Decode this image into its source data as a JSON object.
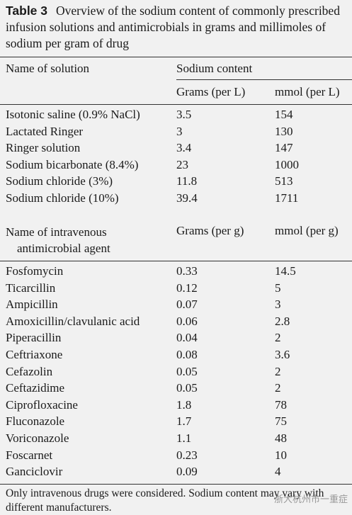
{
  "table": {
    "label": "Table 3",
    "caption": "Overview of the sodium content of commonly prescribed infusion solutions and antimicrobials in grams and millimoles of sodium per gram of drug",
    "section1": {
      "headers": [
        "Name of solution",
        "Sodium content",
        "Grams (per L)",
        "mmol (per L)"
      ],
      "rows": [
        [
          "Isotonic saline (0.9% NaCl)",
          "3.5",
          "154"
        ],
        [
          "Lactated Ringer",
          "3",
          "130"
        ],
        [
          "Ringer solution",
          "3.4",
          "147"
        ],
        [
          "Sodium bicarbonate (8.4%)",
          "23",
          "1000"
        ],
        [
          "Sodium chloride (3%)",
          "11.8",
          "513"
        ],
        [
          "Sodium chloride (10%)",
          "39.4",
          "1711"
        ]
      ]
    },
    "section2": {
      "headers": [
        "Name of intravenous antimicrobial agent",
        "Grams (per g)",
        "mmol (per g)"
      ],
      "rows": [
        [
          "Fosfomycin",
          "0.33",
          "14.5"
        ],
        [
          "Ticarcillin",
          "0.12",
          "5"
        ],
        [
          "Ampicillin",
          "0.07",
          "3"
        ],
        [
          "Amoxicillin/clavulanic acid",
          "0.06",
          "2.8"
        ],
        [
          "Piperacillin",
          "0.04",
          "2"
        ],
        [
          "Ceftriaxone",
          "0.08",
          "3.6"
        ],
        [
          "Cefazolin",
          "0.05",
          "2"
        ],
        [
          "Ceftazidime",
          "0.05",
          "2"
        ],
        [
          "Ciprofloxacine",
          "1.8",
          "78"
        ],
        [
          "Fluconazole",
          "1.7",
          "75"
        ],
        [
          "Voriconazole",
          "1.1",
          "48"
        ],
        [
          "Foscarnet",
          "0.23",
          "10"
        ],
        [
          "Ganciclovir",
          "0.09",
          "4"
        ]
      ]
    },
    "footnote": "Only intravenous drugs were considered. Sodium content may vary with different manufacturers.",
    "watermark": "浙大杭州市一重症"
  }
}
